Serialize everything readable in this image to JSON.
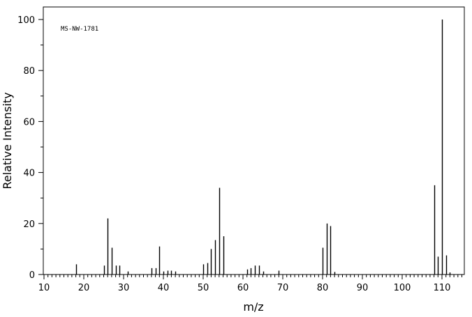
{
  "chart_data": {
    "type": "bar",
    "subtype": "mass-spectrum-stick-plot",
    "annotation": "MS-NW-1781",
    "xlabel": "m/z",
    "ylabel": "Relative Intensity",
    "xlim": [
      10,
      115
    ],
    "ylim": [
      0,
      105
    ],
    "x_ticks": [
      10,
      20,
      30,
      40,
      50,
      60,
      70,
      80,
      90,
      100,
      110
    ],
    "y_ticks": [
      0,
      20,
      40,
      60,
      80,
      100
    ],
    "grid": false,
    "legend": "none",
    "peaks": [
      {
        "x": 18,
        "y": 4
      },
      {
        "x": 25,
        "y": 3.5
      },
      {
        "x": 26,
        "y": 22
      },
      {
        "x": 27,
        "y": 10.5
      },
      {
        "x": 28,
        "y": 3.5
      },
      {
        "x": 29,
        "y": 3.5
      },
      {
        "x": 31,
        "y": 1.2
      },
      {
        "x": 37,
        "y": 2.5
      },
      {
        "x": 38,
        "y": 2.5
      },
      {
        "x": 39,
        "y": 11
      },
      {
        "x": 40,
        "y": 1.2
      },
      {
        "x": 41,
        "y": 1.5
      },
      {
        "x": 42,
        "y": 1.5
      },
      {
        "x": 43,
        "y": 1.2
      },
      {
        "x": 50,
        "y": 4
      },
      {
        "x": 51,
        "y": 4.5
      },
      {
        "x": 52,
        "y": 10
      },
      {
        "x": 53,
        "y": 13.5
      },
      {
        "x": 54,
        "y": 34
      },
      {
        "x": 55,
        "y": 15
      },
      {
        "x": 61,
        "y": 2
      },
      {
        "x": 62,
        "y": 2.5
      },
      {
        "x": 63,
        "y": 3.5
      },
      {
        "x": 64,
        "y": 3.5
      },
      {
        "x": 65,
        "y": 1.2
      },
      {
        "x": 69,
        "y": 1.5
      },
      {
        "x": 80,
        "y": 10.5
      },
      {
        "x": 81,
        "y": 20
      },
      {
        "x": 82,
        "y": 19
      },
      {
        "x": 83,
        "y": 1
      },
      {
        "x": 108,
        "y": 35
      },
      {
        "x": 109,
        "y": 7
      },
      {
        "x": 110,
        "y": 100
      },
      {
        "x": 111,
        "y": 7.5
      },
      {
        "x": 112,
        "y": 0.8
      }
    ]
  }
}
